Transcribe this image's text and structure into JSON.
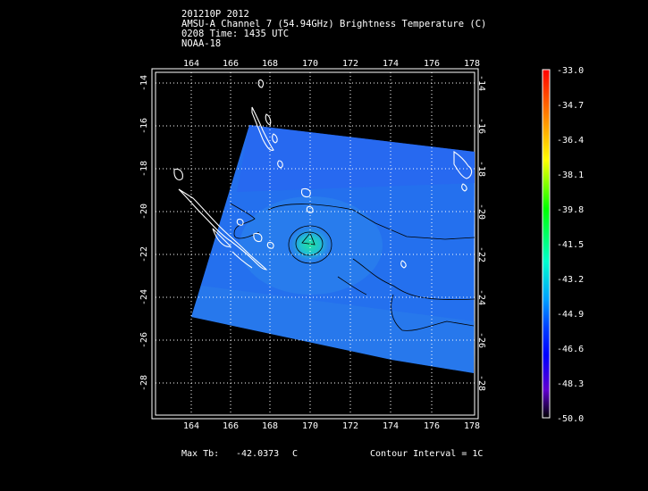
{
  "header": {
    "line1": "201210P 2012",
    "line2": "AMSU-A Channel 7 (54.94GHz) Brightness Temperature (C)",
    "line3": "0208 Time: 1435 UTC",
    "line4": "NOAA-18"
  },
  "map": {
    "lon_ticks": [
      "164",
      "166",
      "168",
      "170",
      "172",
      "174",
      "176",
      "178"
    ],
    "lat_ticks": [
      "-14",
      "-16",
      "-18",
      "-20",
      "-22",
      "-24",
      "-26",
      "-28"
    ],
    "lon_range": [
      162,
      178
    ],
    "lat_range": [
      -13,
      -29.5
    ],
    "grid": true,
    "contour_color": "#000000",
    "coastline_color": "#ffffff"
  },
  "colorbar": {
    "labels": [
      "-33.0",
      "-34.7",
      "-36.4",
      "-38.1",
      "-39.8",
      "-41.5",
      "-43.2",
      "-44.9",
      "-46.6",
      "-48.3",
      "-50.0"
    ],
    "range": [
      -50.0,
      -33.0
    ]
  },
  "footer": {
    "max_tb_label": "Max Tb:",
    "max_tb_value": "-42.0373",
    "max_tb_unit": "C",
    "contour_interval": "Contour Interval = 1C"
  }
}
